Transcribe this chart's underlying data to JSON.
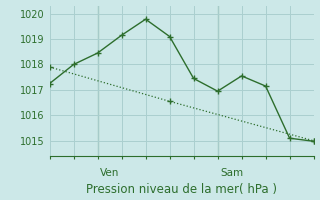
{
  "title": "Pression niveau de la mer( hPa )",
  "bg_color": "#cce8e8",
  "grid_color": "#aacfcf",
  "line_color": "#2d6e2d",
  "ylim": [
    1014.4,
    1020.3
  ],
  "yticks": [
    1015,
    1016,
    1017,
    1018,
    1019,
    1020
  ],
  "series1_x": [
    0,
    1,
    2,
    3,
    4,
    5,
    6,
    7,
    8,
    9,
    10,
    11
  ],
  "series1_y": [
    1017.25,
    1018.0,
    1018.45,
    1019.15,
    1019.78,
    1019.1,
    1017.45,
    1016.95,
    1017.55,
    1017.15,
    1015.1,
    1014.98
  ],
  "series2_x": [
    0,
    5,
    11
  ],
  "series2_y": [
    1017.9,
    1016.55,
    1015.0
  ],
  "ven_x": 2,
  "sam_x": 7,
  "xlim": [
    0,
    11
  ],
  "xlabel_fontsize": 8.5,
  "ylabel_fontsize": 7,
  "day_fontsize": 7.5
}
